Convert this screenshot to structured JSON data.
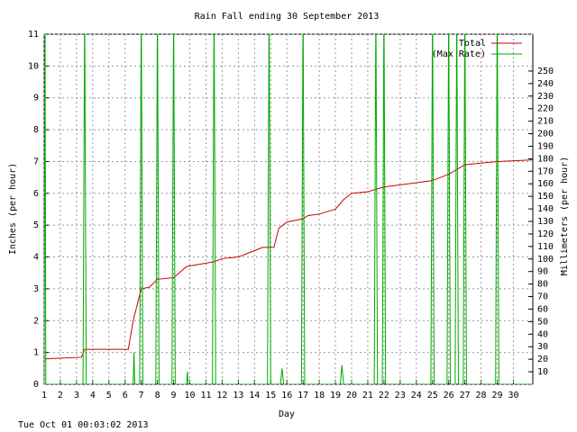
{
  "chart_data": {
    "type": "line",
    "title": "Rain Fall ending 30 September 2013",
    "xlabel": "Day",
    "ylabel": "Inches (per hour)",
    "y2label": "Millimeters (per hour)",
    "footer": "Tue Oct 01 00:03:02 2013",
    "xlim": [
      1,
      31.2
    ],
    "xticks": [
      1,
      2,
      3,
      4,
      5,
      6,
      7,
      8,
      9,
      10,
      11,
      12,
      13,
      14,
      15,
      16,
      17,
      18,
      19,
      20,
      21,
      22,
      23,
      24,
      25,
      26,
      27,
      28,
      29,
      30
    ],
    "ylim": [
      0,
      11
    ],
    "yticks": [
      0,
      1,
      2,
      3,
      4,
      5,
      6,
      7,
      8,
      9,
      10,
      11
    ],
    "y2lim": [
      0,
      279.4
    ],
    "y2ticks": [
      10,
      20,
      30,
      40,
      50,
      60,
      70,
      80,
      90,
      100,
      110,
      120,
      130,
      140,
      150,
      160,
      170,
      180,
      190,
      200,
      210,
      220,
      230,
      240,
      250
    ],
    "grid": true,
    "legend": "top-right",
    "series": [
      {
        "name": "Total",
        "color": "#cc0000",
        "x": [
          1,
          3.3,
          3.5,
          6.2,
          6.5,
          7,
          7.5,
          8,
          9,
          9.8,
          11.5,
          12,
          13,
          13.5,
          14.5,
          15.2,
          15.5,
          16,
          17,
          17.3,
          18,
          19,
          19.5,
          20,
          21,
          22,
          23.5,
          25,
          26,
          27,
          28,
          29,
          31.2
        ],
        "values": [
          0.8,
          0.85,
          1.1,
          1.1,
          2,
          3,
          3.05,
          3.3,
          3.35,
          3.7,
          3.85,
          3.95,
          4.0,
          4.1,
          4.3,
          4.3,
          4.9,
          5.1,
          5.2,
          5.3,
          5.35,
          5.5,
          5.8,
          6.0,
          6.05,
          6.2,
          6.3,
          6.4,
          6.6,
          6.9,
          6.95,
          7.0,
          7.05
        ]
      },
      {
        "name": "(Max Rate)",
        "color": "#00aa00",
        "x": [
          1,
          1.05,
          1.1,
          3.4,
          3.5,
          3.6,
          6.5,
          6.55,
          6.6,
          6.9,
          7,
          7.1,
          7.9,
          8,
          8.1,
          8.9,
          9,
          9.1,
          9.8,
          9.85,
          9.9,
          11.4,
          11.5,
          11.6,
          14.8,
          14.9,
          15,
          15.6,
          15.7,
          15.8,
          16.9,
          17,
          17.1,
          19.3,
          19.4,
          19.5,
          21.4,
          21.5,
          21.6,
          21.9,
          22,
          22.1,
          24.9,
          25,
          25.1,
          25.9,
          26,
          26.1,
          26.4,
          26.5,
          26.6,
          26.9,
          27,
          27.1,
          28.9,
          29,
          29.1,
          31.2
        ],
        "values": [
          0,
          12,
          0,
          0,
          12,
          0,
          0,
          1,
          0,
          0,
          12,
          0,
          0,
          12,
          0,
          0,
          12,
          0,
          0,
          0.4,
          0,
          0,
          12,
          0,
          0,
          12,
          0,
          0,
          0.5,
          0,
          0,
          12,
          0,
          0,
          0.6,
          0,
          0,
          12,
          0,
          0,
          12,
          0,
          0,
          12,
          0,
          0,
          12,
          0,
          0,
          12,
          0,
          0,
          12,
          0,
          0,
          12,
          0,
          0
        ]
      }
    ]
  }
}
